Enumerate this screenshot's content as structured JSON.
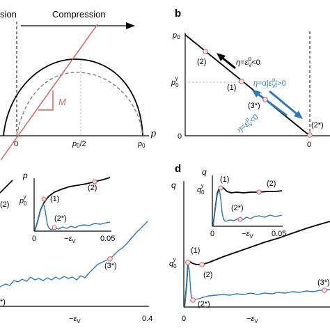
{
  "colors": {
    "red": "#e0605a",
    "blue": "#2b7ab8",
    "pink": "#fbe2e2",
    "black": "#000000"
  },
  "chart_data": [
    {
      "panel": "a",
      "type": "line",
      "header": {
        "left": "sion",
        "right": "Compression"
      },
      "xlabel": "p",
      "xticks": [
        "0",
        "p0/2",
        "p0"
      ],
      "slope_label": "M"
    },
    {
      "panel": "b",
      "label": "b",
      "type": "line",
      "yticks": [
        "p0",
        "p0^y",
        "0"
      ],
      "xticks": [
        "0"
      ],
      "points": [
        "(1)",
        "(2)",
        "(3*)",
        "(2*)"
      ],
      "annotations": [
        "η=ε_V^p<0",
        "η=α|ε_V^p|>0",
        "η=ε_V^p<0"
      ]
    },
    {
      "panel": "c",
      "type": "line",
      "xlabel": "−ε_V",
      "xticks": [
        "0",
        "0.4"
      ],
      "points": [
        "(2)",
        "(3*)",
        "*)"
      ],
      "inset": {
        "ylabel": "p",
        "ytick": "p0^y",
        "xlabel": "−ε_V",
        "xticks": [
          "0",
          "0.05"
        ],
        "points": [
          "(1)",
          "(2)",
          "(2*)"
        ]
      }
    },
    {
      "panel": "d",
      "label": "d",
      "type": "line",
      "ylabel": "q",
      "ytick": "q0^y",
      "xlabel": "−ε_V",
      "xticks": [
        "0"
      ],
      "points": [
        "(1)",
        "(2)",
        "(2*)",
        "(3*)"
      ],
      "inset": {
        "ylabel": "q",
        "ytick": "q0^y",
        "xlabel": "−ε_V",
        "xticks": [
          "0",
          "0.05"
        ],
        "points": [
          "(1)",
          "(2)",
          "(2*)"
        ]
      }
    }
  ]
}
